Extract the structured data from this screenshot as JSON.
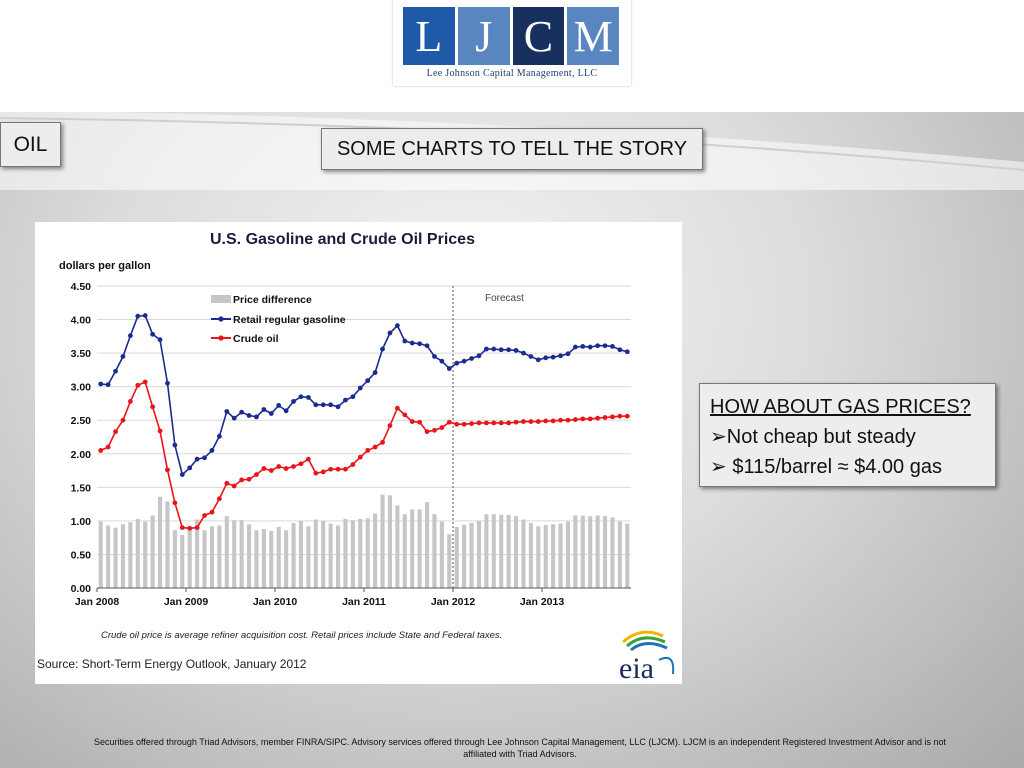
{
  "logo": {
    "letters": [
      "L",
      "J",
      "C",
      "M"
    ],
    "company": "Lee Johnson Capital Management, LLC"
  },
  "section_label": "OIL",
  "slide_title": "SOME CHARTS TO TELL THE STORY",
  "note": {
    "heading": "HOW ABOUT GAS PRICES?",
    "bullets": [
      "Not cheap but steady",
      "$115/barrel ≈ $4.00 gas"
    ],
    "bullet_glyph": "➢"
  },
  "footer": "Securities offered through Triad Advisors, member FINRA/SIPC. Advisory services offered through Lee Johnson Capital Management, LLC (LJCM). LJCM is an independent Registered Investment Advisor and is not affiliated with Triad Advisors.",
  "colors": {
    "gasoline": "#1c2b8f",
    "crude": "#e8151b",
    "difference": "#c6c6c6",
    "brand_blue": "#1f5aa8"
  },
  "chart_data": {
    "type": "line",
    "title": "U.S. Gasoline and Crude Oil Prices",
    "ylabel": "dollars per gallon",
    "ylim": [
      0,
      4.5
    ],
    "yticks": [
      "0.00",
      "0.50",
      "1.00",
      "1.50",
      "2.00",
      "2.50",
      "3.00",
      "3.50",
      "4.00",
      "4.50"
    ],
    "xtick_labels": [
      "Jan 2008",
      "Jan 2009",
      "Jan 2010",
      "Jan 2011",
      "Jan 2012",
      "Jan 2013"
    ],
    "x_start": "Jan 2008",
    "forecast_label": "Forecast",
    "forecast_start_index": 48,
    "note": "Crude oil price is average refiner acquisition cost. Retail prices include State and Federal taxes.",
    "source": "Source: Short-Term Energy Outlook, January 2012",
    "source_logo": "eia",
    "legend": [
      "Price difference",
      "Retail regular gasoline",
      "Crude oil"
    ],
    "series": [
      {
        "name": "Retail regular gasoline",
        "kind": "line",
        "values": [
          3.04,
          3.03,
          3.23,
          3.45,
          3.76,
          4.05,
          4.06,
          3.78,
          3.7,
          3.05,
          2.13,
          1.69,
          1.79,
          1.92,
          1.94,
          2.05,
          2.26,
          2.63,
          2.53,
          2.62,
          2.57,
          2.55,
          2.66,
          2.6,
          2.72,
          2.64,
          2.78,
          2.85,
          2.84,
          2.73,
          2.73,
          2.73,
          2.7,
          2.8,
          2.85,
          2.98,
          3.09,
          3.21,
          3.56,
          3.8,
          3.91,
          3.68,
          3.65,
          3.64,
          3.61,
          3.45,
          3.38,
          3.27,
          3.35,
          3.38,
          3.42,
          3.46,
          3.56,
          3.56,
          3.55,
          3.55,
          3.54,
          3.5,
          3.45,
          3.4,
          3.43,
          3.44,
          3.46,
          3.49,
          3.59,
          3.6,
          3.59,
          3.61,
          3.61,
          3.6,
          3.55,
          3.52
        ]
      },
      {
        "name": "Crude oil",
        "kind": "line",
        "values": [
          2.05,
          2.1,
          2.33,
          2.5,
          2.78,
          3.02,
          3.07,
          2.7,
          2.34,
          1.76,
          1.27,
          0.9,
          0.89,
          0.9,
          1.08,
          1.13,
          1.33,
          1.56,
          1.52,
          1.61,
          1.62,
          1.69,
          1.78,
          1.75,
          1.81,
          1.78,
          1.81,
          1.85,
          1.92,
          1.71,
          1.73,
          1.77,
          1.77,
          1.77,
          1.84,
          1.95,
          2.05,
          2.1,
          2.17,
          2.42,
          2.68,
          2.58,
          2.48,
          2.47,
          2.33,
          2.35,
          2.39,
          2.47,
          2.44,
          2.44,
          2.45,
          2.46,
          2.46,
          2.46,
          2.46,
          2.46,
          2.47,
          2.48,
          2.48,
          2.48,
          2.49,
          2.49,
          2.5,
          2.5,
          2.51,
          2.52,
          2.52,
          2.53,
          2.54,
          2.55,
          2.56,
          2.56
        ]
      },
      {
        "name": "Price difference",
        "kind": "bar",
        "values": [
          0.99,
          0.93,
          0.9,
          0.95,
          0.98,
          1.03,
          0.99,
          1.08,
          1.36,
          1.29,
          0.86,
          0.79,
          0.9,
          1.02,
          0.86,
          0.92,
          0.93,
          1.07,
          1.01,
          1.01,
          0.95,
          0.86,
          0.88,
          0.85,
          0.91,
          0.86,
          0.97,
          1.0,
          0.92,
          1.02,
          1.0,
          0.96,
          0.93,
          1.03,
          1.01,
          1.03,
          1.04,
          1.11,
          1.39,
          1.38,
          1.23,
          1.1,
          1.17,
          1.17,
          1.28,
          1.1,
          0.99,
          0.8,
          0.91,
          0.94,
          0.97,
          1.0,
          1.1,
          1.1,
          1.09,
          1.09,
          1.07,
          1.02,
          0.97,
          0.92,
          0.94,
          0.95,
          0.96,
          0.99,
          1.08,
          1.08,
          1.07,
          1.08,
          1.07,
          1.05,
          0.99,
          0.96
        ]
      }
    ]
  }
}
